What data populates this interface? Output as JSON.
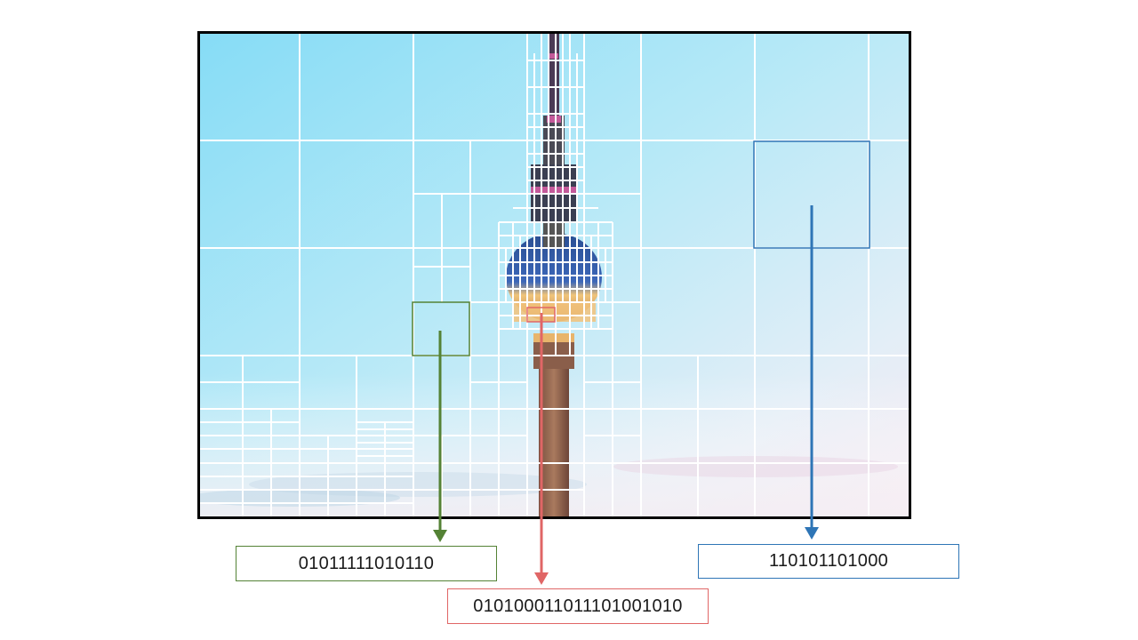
{
  "codes": {
    "green": "01011111010110",
    "red": "010100011011101001010",
    "blue": "110101101000"
  },
  "colors": {
    "green": "#548235",
    "red": "#e06666",
    "blue": "#2e75b6",
    "frame": "#000000",
    "grid": "#ffffff"
  }
}
